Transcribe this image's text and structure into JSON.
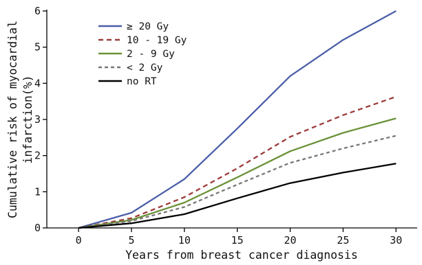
{
  "chart_data": {
    "type": "line",
    "title": "",
    "xlabel": "Years from breast cancer diagnosis",
    "ylabel": [
      "Cumulative risk of myocardial",
      "infarction(%)"
    ],
    "x": [
      0,
      5,
      10,
      15,
      20,
      25,
      30
    ],
    "xlim": [
      -3,
      32
    ],
    "ylim": [
      0,
      6
    ],
    "xticks": [
      0,
      5,
      10,
      15,
      20,
      25,
      30
    ],
    "yticks": [
      0,
      1,
      2,
      3,
      4,
      5,
      6
    ],
    "grid": false,
    "legend_position": "top-left",
    "series": [
      {
        "name": "≥ 20 Gy",
        "color": "#4a5ea8",
        "dash": "solid",
        "values": [
          0,
          0.42,
          1.35,
          2.75,
          4.2,
          5.2,
          6.0
        ]
      },
      {
        "name": "10 - 19 Gy",
        "color": "#9c3a3a",
        "dash": "dashed",
        "values": [
          0,
          0.27,
          0.85,
          1.65,
          2.52,
          3.12,
          3.63
        ]
      },
      {
        "name": "2 - 9 Gy",
        "color": "#6a9137",
        "dash": "solid",
        "values": [
          0,
          0.22,
          0.7,
          1.4,
          2.12,
          2.63,
          3.03
        ]
      },
      {
        "name": "< 2 Gy",
        "color": "#777777",
        "dash": "dashed-short",
        "values": [
          0,
          0.19,
          0.58,
          1.2,
          1.8,
          2.2,
          2.55
        ]
      },
      {
        "name": "no RT",
        "color": "#000000",
        "dash": "solid",
        "values": [
          0,
          0.13,
          0.38,
          0.82,
          1.24,
          1.53,
          1.78
        ]
      }
    ]
  }
}
